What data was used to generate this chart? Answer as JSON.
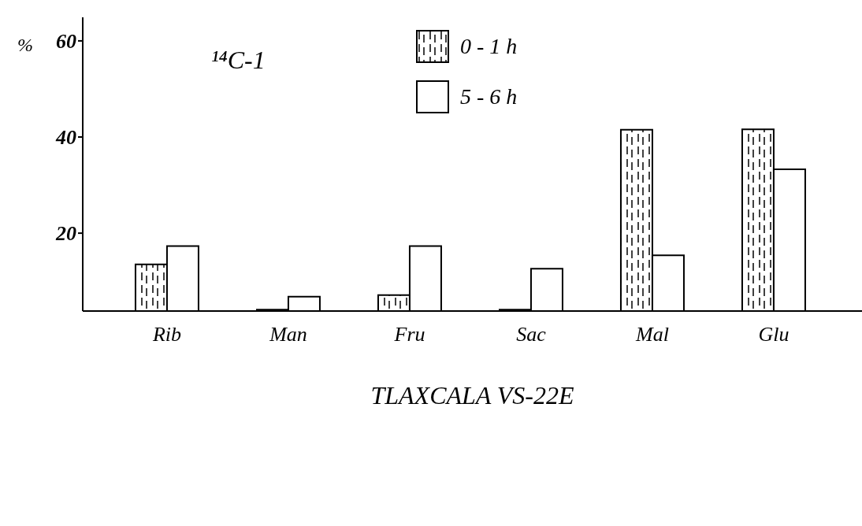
{
  "chart_data": {
    "type": "bar",
    "xlabel": "TLAXCALA VS-22E",
    "ylabel": "%",
    "categories": [
      "Rib",
      "Man",
      "Fru",
      "Sac",
      "Mal",
      "Glu"
    ],
    "series": [
      {
        "name": "0 - 1 h",
        "color": "#000000",
        "values": [
          13.5,
          4.1,
          7.1,
          4.1,
          41.5,
          41.6
        ]
      },
      {
        "name": "5 - 6 h",
        "color": "#ffffff",
        "values": [
          17.3,
          6.8,
          17.3,
          12.6,
          15.4,
          33.3
        ]
      }
    ],
    "ylim": [
      3.8,
      64.9
    ],
    "yticks": [
      20,
      40,
      60
    ],
    "annotations": [
      "¹⁴C-1"
    ],
    "legend": "top",
    "grid": false
  }
}
